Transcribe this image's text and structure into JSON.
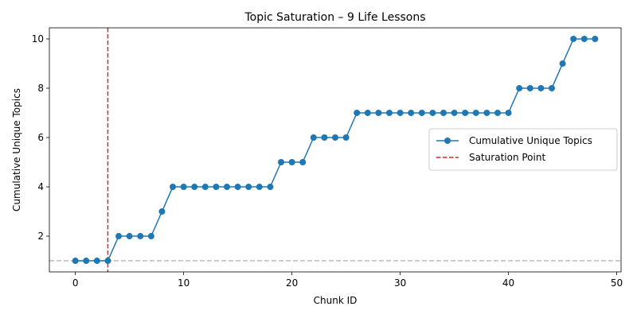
{
  "chart_data": {
    "type": "line",
    "title": "Topic Saturation – 9 Life Lessons",
    "xlabel": "Chunk ID",
    "ylabel": "Cumulative Unique Topics",
    "xlim": [
      -2.4,
      50.4
    ],
    "ylim": [
      0.55,
      10.45
    ],
    "xticks": [
      0,
      10,
      20,
      30,
      40,
      50
    ],
    "yticks": [
      2,
      4,
      6,
      8,
      10
    ],
    "grid": false,
    "legend_position": "center-right",
    "series": [
      {
        "name": "Cumulative Unique Topics",
        "color": "#1f77b4",
        "marker": "circle",
        "x": [
          0,
          1,
          2,
          3,
          4,
          5,
          6,
          7,
          8,
          9,
          10,
          11,
          12,
          13,
          14,
          15,
          16,
          17,
          18,
          19,
          20,
          21,
          22,
          23,
          24,
          25,
          26,
          27,
          28,
          29,
          30,
          31,
          32,
          33,
          34,
          35,
          36,
          37,
          38,
          39,
          40,
          41,
          42,
          43,
          44,
          45,
          46,
          47,
          48
        ],
        "y": [
          1,
          1,
          1,
          1,
          2,
          2,
          2,
          2,
          3,
          4,
          4,
          4,
          4,
          4,
          4,
          4,
          4,
          4,
          4,
          5,
          5,
          5,
          6,
          6,
          6,
          6,
          7,
          7,
          7,
          7,
          7,
          7,
          7,
          7,
          7,
          7,
          7,
          7,
          7,
          7,
          7,
          8,
          8,
          8,
          8,
          9,
          10,
          10,
          10
        ]
      }
    ],
    "reference_lines": [
      {
        "name": "Saturation Point",
        "orientation": "vertical",
        "value": 3,
        "color": "#d62728",
        "style": "dashed",
        "in_legend": true
      },
      {
        "orientation": "horizontal",
        "value": 1,
        "color": "#bbbbbb",
        "style": "dashed",
        "in_legend": false
      }
    ]
  }
}
